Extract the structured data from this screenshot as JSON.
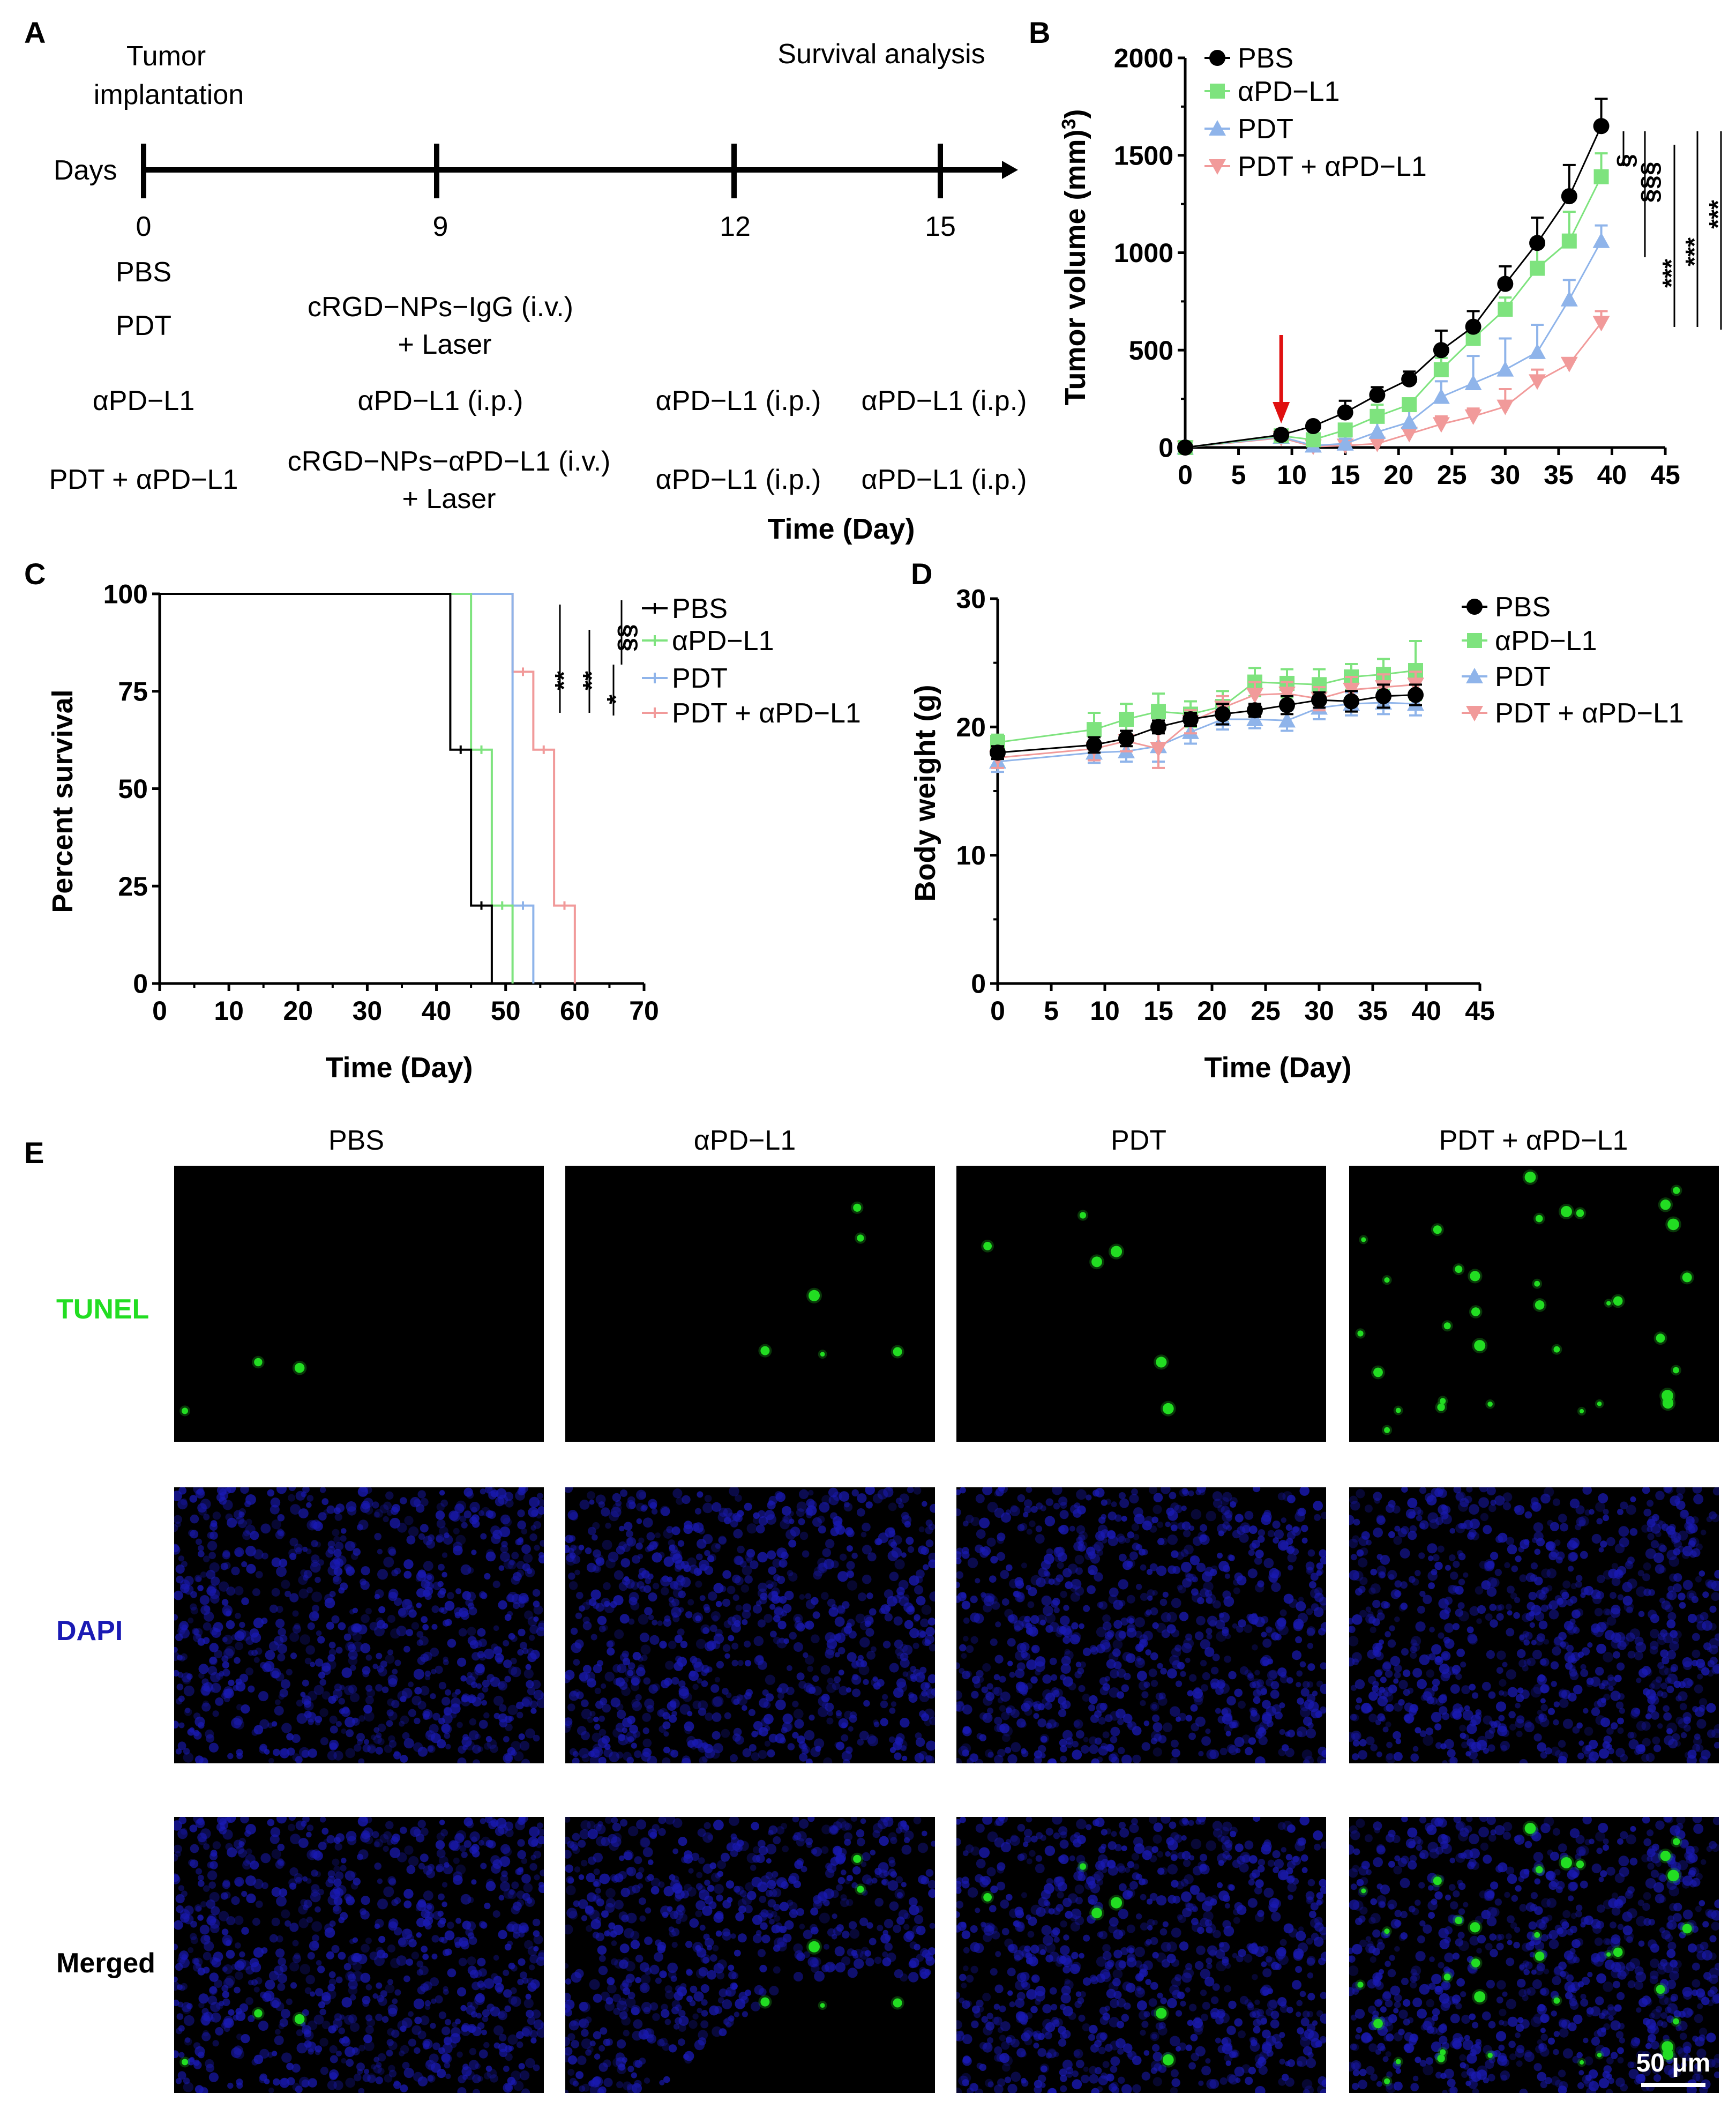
{
  "panel_letters": [
    "A",
    "B",
    "C",
    "D",
    "E"
  ],
  "colors": {
    "pbs": "#000000",
    "apd": "#7ee37e",
    "pdt": "#8fb4ea",
    "combo": "#f19a9a",
    "arrow": "#e01010",
    "tunel": "#22dd22",
    "dapi": "#1a1ab4"
  },
  "timeline": {
    "title_left": [
      "Tumor",
      "implantation"
    ],
    "title_right": "Survival analysis",
    "axis_label": "Days",
    "days": [
      "0",
      "9",
      "12",
      "15"
    ],
    "rows": [
      {
        "group": "PBS",
        "cells": [
          "",
          "",
          ""
        ]
      },
      {
        "group": "PDT",
        "cells": [
          "cRGD−NPs−IgG (i.v.)|+ Laser",
          "",
          ""
        ]
      },
      {
        "group": "αPD−L1",
        "cells": [
          "αPD−L1 (i.p.)",
          "αPD−L1 (i.p.)",
          "αPD−L1 (i.p.)"
        ]
      },
      {
        "group": "PDT + αPD−L1",
        "cells": [
          "cRGD−NPs−αPD−L1 (i.v.)|+ Laser",
          "αPD−L1 (i.p.)",
          "αPD−L1 (i.p.)"
        ]
      }
    ]
  },
  "chart_data": [
    {
      "panel": "B",
      "type": "line",
      "xlabel": "Time (Day)",
      "ylabel": "Tumor volume (mm3)",
      "xlim": [
        0,
        45
      ],
      "ylim": [
        0,
        2000
      ],
      "xticks": [
        "0",
        "5",
        "10",
        "15",
        "20",
        "25",
        "30",
        "35",
        "40",
        "45"
      ],
      "yticks": [
        "0",
        "500",
        "1000",
        "1500",
        "2000"
      ],
      "x": [
        0,
        9,
        12,
        15,
        18,
        21,
        24,
        27,
        30,
        33,
        36,
        39
      ],
      "treatment_arrow_day": 9,
      "series": [
        {
          "name": "PBS",
          "values": [
            0,
            65,
            110,
            180,
            270,
            350,
            500,
            620,
            840,
            1050,
            1290,
            1650
          ],
          "errors": [
            0,
            10,
            20,
            60,
            40,
            40,
            100,
            80,
            90,
            130,
            160,
            140
          ]
        },
        {
          "name": "αPD−L1",
          "values": [
            0,
            60,
            40,
            90,
            160,
            220,
            400,
            560,
            710,
            920,
            1060,
            1390
          ],
          "errors": [
            0,
            8,
            15,
            30,
            60,
            30,
            60,
            70,
            60,
            150,
            150,
            120
          ]
        },
        {
          "name": "PDT",
          "values": [
            0,
            55,
            10,
            20,
            80,
            130,
            260,
            330,
            400,
            490,
            760,
            1060
          ],
          "errors": [
            0,
            6,
            10,
            25,
            50,
            60,
            80,
            140,
            160,
            140,
            100,
            80
          ]
        },
        {
          "name": "PDT + αPD−L1",
          "values": [
            0,
            50,
            5,
            10,
            20,
            70,
            120,
            160,
            210,
            340,
            430,
            640
          ],
          "errors": [
            0,
            5,
            5,
            10,
            15,
            30,
            40,
            40,
            90,
            60,
            20,
            60
          ]
        }
      ],
      "significance": [
        "§",
        "§§§",
        "***",
        "***",
        "***"
      ]
    },
    {
      "panel": "C",
      "type": "line",
      "subtype": "kaplan-meier",
      "xlabel": "Time (Day)",
      "ylabel": "Percent survival",
      "xlim": [
        0,
        70
      ],
      "ylim": [
        0,
        100
      ],
      "xticks": [
        "0",
        "10",
        "20",
        "30",
        "40",
        "50",
        "60",
        "70"
      ],
      "yticks": [
        "0",
        "25",
        "50",
        "75",
        "100"
      ],
      "series": [
        {
          "name": "PBS",
          "steps": [
            [
              0,
              100
            ],
            [
              42,
              60
            ],
            [
              45,
              20
            ],
            [
              48,
              0
            ]
          ]
        },
        {
          "name": "αPD−L1",
          "steps": [
            [
              0,
              100
            ],
            [
              45,
              60
            ],
            [
              48,
              20
            ],
            [
              51,
              0
            ]
          ]
        },
        {
          "name": "PDT",
          "steps": [
            [
              0,
              100
            ],
            [
              51,
              20
            ],
            [
              54,
              0
            ]
          ]
        },
        {
          "name": "PDT + αPD−L1",
          "steps": [
            [
              0,
              100
            ],
            [
              51,
              80
            ],
            [
              54,
              60
            ],
            [
              57,
              20
            ],
            [
              60,
              0
            ]
          ]
        }
      ],
      "significance": [
        "**",
        "**",
        "*",
        "§§"
      ]
    },
    {
      "panel": "D",
      "type": "line",
      "xlabel": "Time (Day)",
      "ylabel": "Body weight (g)",
      "xlim": [
        0,
        45
      ],
      "ylim": [
        0,
        30
      ],
      "xticks": [
        "0",
        "5",
        "10",
        "15",
        "20",
        "25",
        "30",
        "35",
        "40",
        "45"
      ],
      "yticks": [
        "0",
        "10",
        "20",
        "30"
      ],
      "x": [
        0,
        9,
        12,
        15,
        18,
        21,
        24,
        27,
        30,
        33,
        36,
        39
      ],
      "series": [
        {
          "name": "PBS",
          "values": [
            18.0,
            18.6,
            19.1,
            20.0,
            20.6,
            21.0,
            21.3,
            21.7,
            22.1,
            22.0,
            22.4,
            22.5
          ],
          "errors": [
            0.5,
            0.6,
            0.6,
            0.5,
            0.5,
            0.8,
            0.5,
            0.7,
            0.6,
            0.8,
            0.9,
            0.8
          ]
        },
        {
          "name": "αPD−L1",
          "values": [
            18.8,
            19.8,
            20.6,
            21.2,
            21.0,
            21.6,
            23.5,
            23.4,
            23.3,
            23.9,
            24.1,
            24.4
          ],
          "errors": [
            0.6,
            1.3,
            1.2,
            1.4,
            1.0,
            1.2,
            1.1,
            1.1,
            1.2,
            1.0,
            1.2,
            2.3
          ]
        },
        {
          "name": "PDT",
          "values": [
            17.3,
            18.0,
            18.1,
            18.5,
            19.6,
            20.6,
            20.6,
            20.5,
            21.5,
            21.8,
            21.9,
            21.8
          ],
          "errors": [
            0.8,
            0.8,
            0.8,
            1.2,
            0.9,
            0.8,
            0.7,
            0.8,
            0.9,
            0.9,
            0.9,
            0.9
          ]
        },
        {
          "name": "PDT + αPD−L1",
          "values": [
            17.6,
            18.3,
            18.9,
            18.3,
            20.4,
            21.5,
            22.5,
            22.6,
            22.2,
            22.9,
            23.1,
            23.3
          ],
          "errors": [
            0.8,
            0.9,
            0.8,
            1.5,
            0.9,
            0.9,
            1.0,
            0.9,
            0.9,
            1.0,
            1.0,
            1.0
          ]
        }
      ]
    }
  ],
  "micrographs": {
    "columns": [
      "PBS",
      "αPD−L1",
      "PDT",
      "PDT + αPD−L1"
    ],
    "rows": [
      "TUNEL",
      "DAPI",
      "Merged"
    ],
    "scale_bar": "50 μm",
    "tunel_spot_counts": [
      3,
      6,
      6,
      34
    ]
  }
}
